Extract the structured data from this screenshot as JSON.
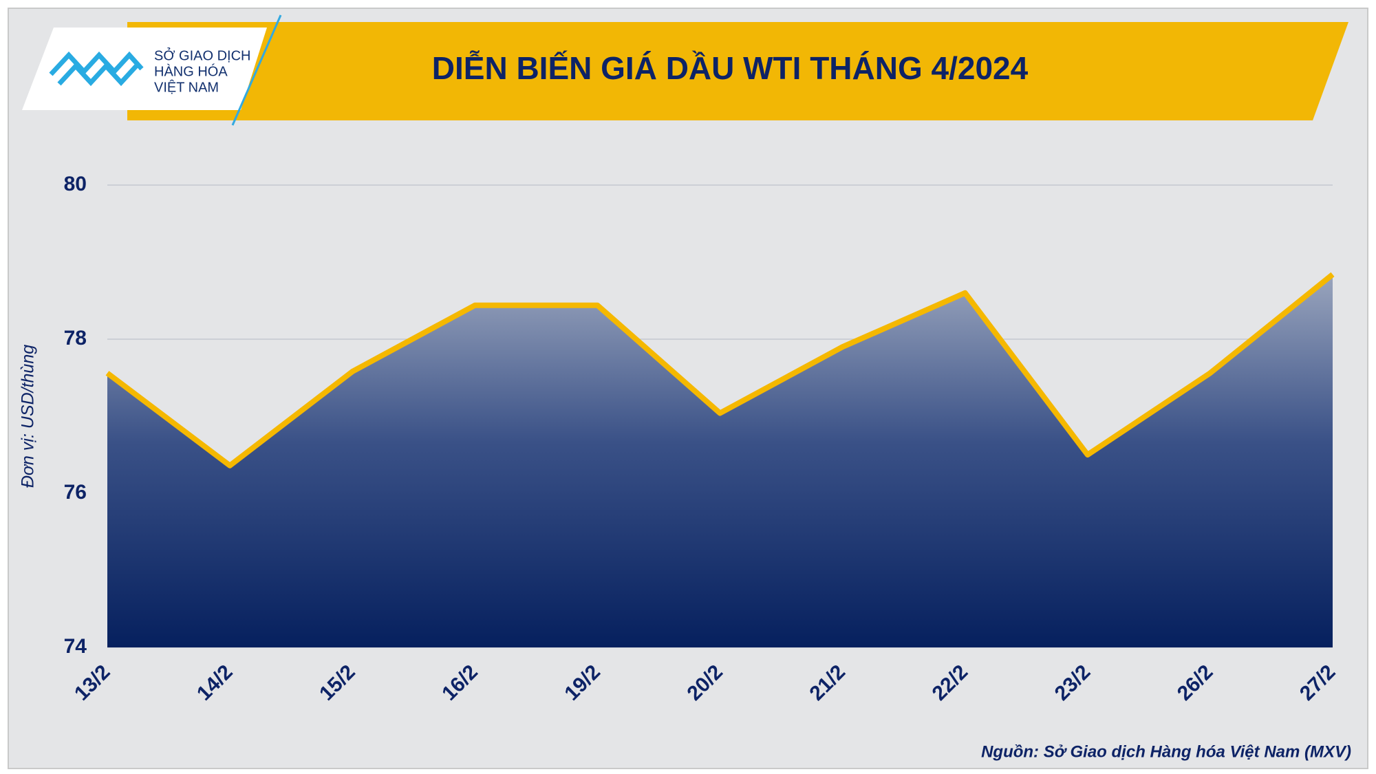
{
  "logo": {
    "lines": [
      "SỞ GIAO DỊCH",
      "HÀNG HÓA",
      "VIỆT NAM"
    ]
  },
  "chart_data": {
    "type": "area",
    "title": "DIỄN BIẾN GIÁ DẦU WTI THÁNG 4/2024",
    "y_label": "Đơn vị: USD/thùng",
    "source": "Nguồn: Sở Giao dịch Hàng hóa Việt Nam (MXV)",
    "categories": [
      "13/2",
      "14/2",
      "15/2",
      "16/2",
      "19/2",
      "20/2",
      "21/2",
      "22/2",
      "23/2",
      "26/2",
      "27/2"
    ],
    "values": [
      77.56,
      76.36,
      77.58,
      78.44,
      78.44,
      77.04,
      77.9,
      78.6,
      76.5,
      77.56,
      78.84
    ],
    "color": "#f5b800",
    "ylim": [
      74,
      80
    ],
    "yticks": [
      74,
      76,
      78,
      80
    ],
    "grid": true
  }
}
